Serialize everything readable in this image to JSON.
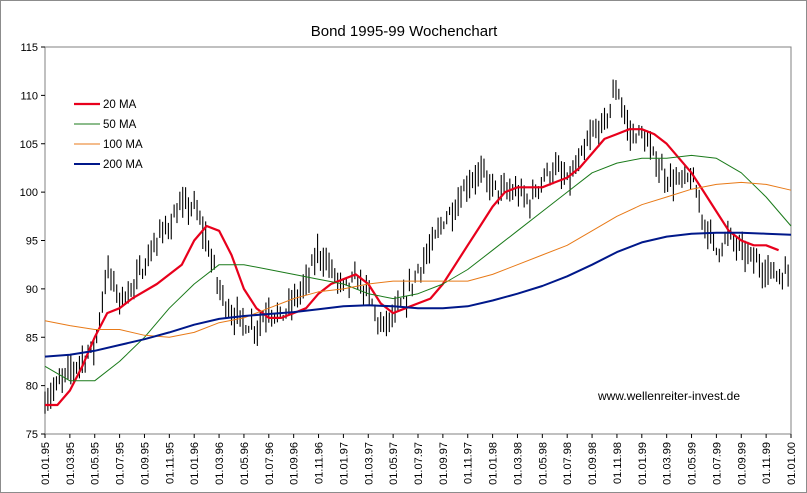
{
  "chart_data": {
    "type": "line",
    "title": "Bond 1995-99 Wochenchart",
    "source": "www.wellenreiter-invest.de",
    "ylim": [
      75,
      115
    ],
    "yticks": [
      75,
      80,
      85,
      90,
      95,
      100,
      105,
      110,
      115
    ],
    "xticks": [
      "01.01.95",
      "01.03.95",
      "01.05.95",
      "01.07.95",
      "01.09.95",
      "01.11.95",
      "01.01.96",
      "01.03.96",
      "01.05.96",
      "01.07.96",
      "01.09.96",
      "01.11.96",
      "01.01.97",
      "01.03.97",
      "01.05.97",
      "01.07.97",
      "01.09.97",
      "01.11.97",
      "01.01.98",
      "01.03.98",
      "01.05.98",
      "01.07.98",
      "01.09.98",
      "01.11.98",
      "01.01.99",
      "01.03.99",
      "01.05.99",
      "01.07.99",
      "01.09.99",
      "01.11.99",
      "01.01.00"
    ],
    "grid": false,
    "legend_position": "top-left",
    "price": {
      "style": "weekly high-low bars",
      "color": "#000000",
      "x": [
        "1995-01",
        "1995-03",
        "1995-05",
        "1995-06",
        "1995-07",
        "1995-08",
        "1995-10",
        "1995-12",
        "1996-01",
        "1996-02",
        "1996-03",
        "1996-04",
        "1996-05",
        "1996-06",
        "1996-07",
        "1996-08",
        "1996-10",
        "1996-11",
        "1996-12",
        "1997-01",
        "1997-02",
        "1997-03",
        "1997-04",
        "1997-05",
        "1997-06",
        "1997-07",
        "1997-08",
        "1997-09",
        "1997-10",
        "1997-11",
        "1997-12",
        "1998-01",
        "1998-02",
        "1998-03",
        "1998-04",
        "1998-05",
        "1998-06",
        "1998-07",
        "1998-08",
        "1998-09",
        "1998-10",
        "1998-11",
        "1998-12",
        "1999-01",
        "1999-02",
        "1999-03",
        "1999-04",
        "1999-05",
        "1999-06",
        "1999-07",
        "1999-08",
        "1999-09",
        "1999-10",
        "1999-11",
        "1999-12"
      ],
      "y": [
        78.5,
        81.5,
        84.0,
        92.0,
        89.0,
        90.0,
        95.0,
        98.5,
        98.5,
        95.0,
        90.0,
        87.5,
        86.5,
        86.0,
        88.0,
        87.0,
        90.5,
        94.0,
        92.0,
        90.0,
        91.0,
        89.5,
        86.0,
        87.0,
        89.0,
        92.0,
        94.0,
        97.0,
        98.5,
        101.0,
        102.0,
        100.5,
        100.0,
        100.0,
        99.0,
        101.5,
        102.5,
        101.0,
        103.0,
        106.0,
        107.0,
        111.0,
        106.0,
        106.0,
        103.5,
        101.5,
        101.0,
        101.5,
        97.0,
        94.0,
        95.5,
        94.0,
        93.0,
        92.0,
        91.5
      ]
    },
    "series": [
      {
        "name": "20 MA",
        "color": "#e8001c",
        "width": 2.2,
        "x": [
          "1995-01",
          "1995-02",
          "1995-03",
          "1995-04",
          "1995-05",
          "1995-06",
          "1995-07",
          "1995-08",
          "1995-10",
          "1995-12",
          "1996-01",
          "1996-02",
          "1996-03",
          "1996-04",
          "1996-05",
          "1996-06",
          "1996-07",
          "1996-08",
          "1996-09",
          "1996-10",
          "1996-11",
          "1996-12",
          "1997-01",
          "1997-02",
          "1997-03",
          "1997-04",
          "1997-05",
          "1997-06",
          "1997-07",
          "1997-08",
          "1997-09",
          "1997-10",
          "1997-11",
          "1997-12",
          "1998-01",
          "1998-02",
          "1998-03",
          "1998-04",
          "1998-05",
          "1998-06",
          "1998-07",
          "1998-08",
          "1998-09",
          "1998-10",
          "1998-11",
          "1998-12",
          "1999-01",
          "1999-02",
          "1999-03",
          "1999-04",
          "1999-05",
          "1999-06",
          "1999-07",
          "1999-08",
          "1999-09",
          "1999-10",
          "1999-11",
          "1999-12"
        ],
        "y": [
          78.0,
          78.0,
          79.5,
          82.0,
          85.0,
          87.5,
          88.0,
          89.0,
          90.5,
          92.5,
          95.0,
          96.5,
          96.0,
          93.5,
          90.0,
          88.0,
          87.0,
          87.0,
          87.5,
          88.0,
          89.5,
          90.5,
          91.0,
          91.5,
          90.5,
          88.5,
          87.5,
          88.0,
          88.5,
          89.0,
          90.5,
          92.5,
          94.5,
          96.5,
          98.5,
          100.0,
          100.5,
          100.5,
          100.5,
          101.0,
          101.5,
          102.5,
          104.0,
          105.5,
          106.0,
          106.5,
          106.5,
          106.0,
          105.0,
          103.5,
          102.0,
          100.0,
          98.0,
          96.0,
          95.0,
          94.5,
          94.5,
          94.0
        ]
      },
      {
        "name": "50 MA",
        "color": "#1a7a1a",
        "width": 1,
        "x": [
          "1995-01",
          "1995-03",
          "1995-05",
          "1995-07",
          "1995-09",
          "1995-11",
          "1996-01",
          "1996-03",
          "1996-05",
          "1996-07",
          "1996-09",
          "1996-11",
          "1997-01",
          "1997-03",
          "1997-05",
          "1997-07",
          "1997-09",
          "1997-11",
          "1998-01",
          "1998-03",
          "1998-05",
          "1998-07",
          "1998-09",
          "1998-11",
          "1999-01",
          "1999-03",
          "1999-05",
          "1999-07",
          "1999-09",
          "1999-11",
          "2000-01"
        ],
        "y": [
          82.0,
          80.5,
          80.5,
          82.5,
          85.0,
          88.0,
          90.5,
          92.5,
          92.5,
          92.0,
          91.5,
          91.0,
          90.5,
          89.5,
          89.0,
          89.5,
          90.5,
          92.0,
          94.0,
          96.0,
          98.0,
          100.0,
          102.0,
          103.0,
          103.5,
          103.5,
          103.8,
          103.5,
          102.0,
          99.5,
          96.5
        ]
      },
      {
        "name": "100 MA",
        "color": "#e87a18",
        "width": 1,
        "x": [
          "1995-01",
          "1995-03",
          "1995-05",
          "1995-07",
          "1995-09",
          "1995-11",
          "1996-01",
          "1996-03",
          "1996-05",
          "1996-07",
          "1996-09",
          "1996-11",
          "1997-01",
          "1997-03",
          "1997-05",
          "1997-07",
          "1997-09",
          "1997-11",
          "1998-01",
          "1998-03",
          "1998-05",
          "1998-07",
          "1998-09",
          "1998-11",
          "1999-01",
          "1999-03",
          "1999-05",
          "1999-07",
          "1999-09",
          "1999-11",
          "2000-01"
        ],
        "y": [
          86.7,
          86.2,
          85.8,
          85.8,
          85.2,
          85.0,
          85.5,
          86.5,
          87.0,
          88.0,
          89.0,
          89.7,
          90.0,
          90.5,
          90.8,
          90.8,
          90.8,
          90.8,
          91.5,
          92.5,
          93.5,
          94.5,
          96.0,
          97.5,
          98.7,
          99.5,
          100.3,
          100.8,
          101.0,
          100.8,
          100.2
        ]
      },
      {
        "name": "200 MA",
        "color": "#00188a",
        "width": 2,
        "x": [
          "1995-01",
          "1995-03",
          "1995-05",
          "1995-07",
          "1995-09",
          "1995-11",
          "1996-01",
          "1996-03",
          "1996-05",
          "1996-07",
          "1996-09",
          "1996-11",
          "1997-01",
          "1997-03",
          "1997-05",
          "1997-07",
          "1997-09",
          "1997-11",
          "1998-01",
          "1998-03",
          "1998-05",
          "1998-07",
          "1998-09",
          "1998-11",
          "1999-01",
          "1999-03",
          "1999-05",
          "1999-07",
          "1999-09",
          "1999-11",
          "2000-01"
        ],
        "y": [
          83.0,
          83.2,
          83.6,
          84.2,
          84.8,
          85.5,
          86.3,
          86.9,
          87.2,
          87.4,
          87.6,
          87.9,
          88.2,
          88.3,
          88.2,
          88.0,
          88.0,
          88.2,
          88.8,
          89.5,
          90.3,
          91.3,
          92.5,
          93.8,
          94.8,
          95.4,
          95.7,
          95.8,
          95.8,
          95.7,
          95.6
        ]
      }
    ]
  }
}
